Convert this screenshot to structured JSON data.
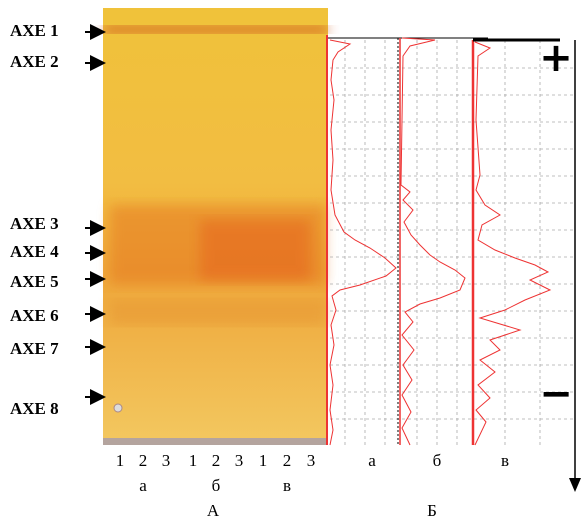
{
  "band_labels": [
    "AXE 1",
    "AXE 2",
    "AXE 3",
    "AXE 4",
    "AXE 5",
    "AXE 6",
    "AXE 7",
    "AXE 8"
  ],
  "lane_numbers": [
    "1",
    "2",
    "3",
    "1",
    "2",
    "3",
    "1",
    "2",
    "3"
  ],
  "group_labels": [
    "а",
    "б",
    "в"
  ],
  "profile_labels": [
    "а",
    "б",
    "в"
  ],
  "panel_labels": [
    "А",
    "Б"
  ],
  "signs": [
    "+",
    "−"
  ]
}
